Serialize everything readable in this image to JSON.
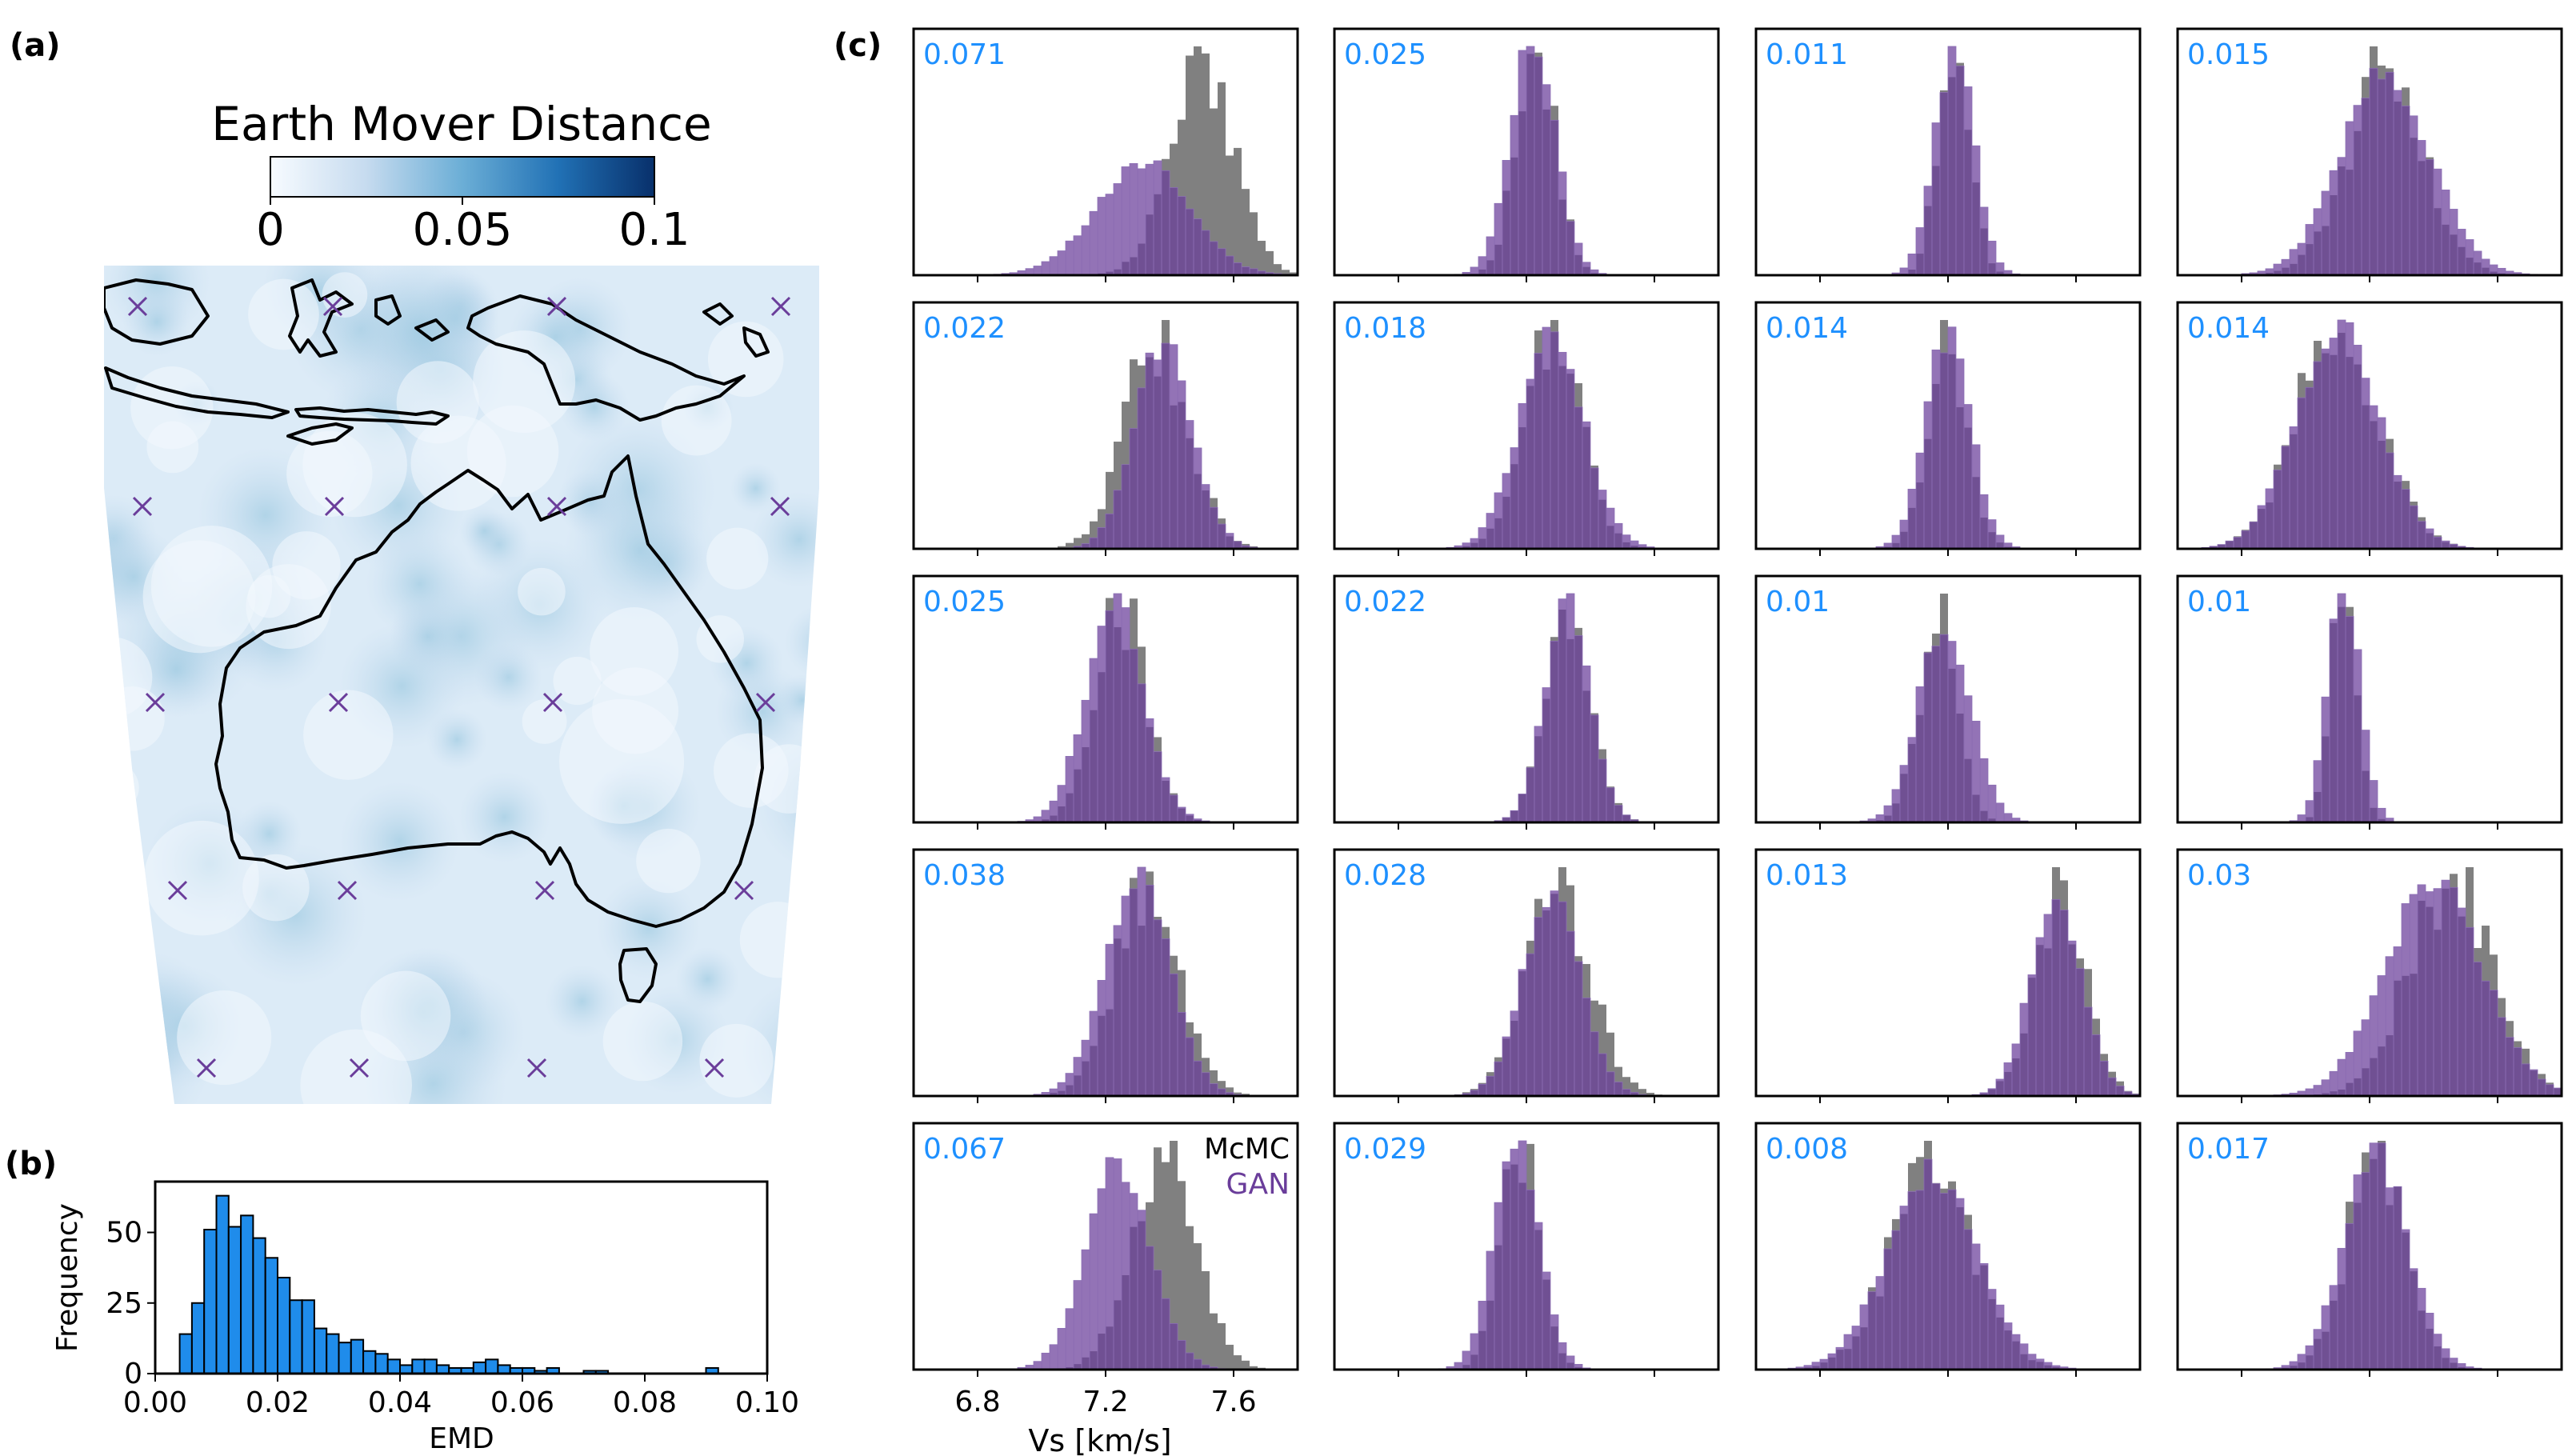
{
  "panel_labels": {
    "a": "(a)",
    "b": "(b)",
    "c": "(c)"
  },
  "colors": {
    "gan": "#6a3d9a",
    "mcmc": "#808080",
    "emd_value_text": "#1e90ff",
    "hist_bar": "#1f8ceb",
    "map_low": "#f3f8fd",
    "map_high": "#08306b",
    "station_marker": "#6a3d9a"
  },
  "map_panel": {
    "colorbar_title": "Earth Mover Distance",
    "colorbar_ticks": [
      "0",
      "0.05",
      "0.1"
    ],
    "colormap": "Blues",
    "range": [
      0,
      0.1
    ],
    "coastline": "Australia, Indonesia and New Guinea",
    "station_marker_icon": "x-marker",
    "station_grid": "4 columns x 5 rows"
  },
  "emd_hist": {
    "xlabel": "EMD",
    "ylabel": "Frequency",
    "xticks": [
      "0.00",
      "0.02",
      "0.04",
      "0.06",
      "0.08",
      "0.10"
    ],
    "yticks": [
      "0",
      "25",
      "50"
    ]
  },
  "vs_grid": {
    "xlabel": "Vs [km/s]",
    "xticks": [
      "6.8",
      "7.2",
      "7.6"
    ],
    "legend": {
      "mcmc": "McMC",
      "gan": "GAN"
    },
    "emd_values": [
      [
        "0.071",
        "0.025",
        "0.011",
        "0.015"
      ],
      [
        "0.022",
        "0.018",
        "0.014",
        "0.014"
      ],
      [
        "0.025",
        "0.022",
        "0.01",
        "0.01"
      ],
      [
        "0.038",
        "0.028",
        "0.013",
        "0.03"
      ],
      [
        "0.067",
        "0.029",
        "0.008",
        "0.017"
      ]
    ]
  },
  "chart_data": [
    {
      "type": "heatmap",
      "colorbar_title": "Earth Mover Distance",
      "colorbar_range": [
        0,
        0.1
      ],
      "colorbar_ticks": [
        0,
        0.05,
        0.1
      ],
      "overlay": "station locations (x markers) on a 4 x 5 grid"
    },
    {
      "type": "bar",
      "xlabel": "EMD",
      "ylabel": "Frequency",
      "xlim": [
        0,
        0.1
      ],
      "ylim": [
        0,
        68
      ],
      "bin_width": 0.002,
      "bin_start": 0.004,
      "values": [
        14,
        25,
        51,
        63,
        52,
        56,
        48,
        41,
        34,
        26,
        26,
        16,
        14,
        11,
        12,
        8,
        7,
        5,
        3,
        5,
        5,
        3,
        2,
        2,
        4,
        5,
        3,
        2,
        2,
        1,
        2,
        0,
        0,
        1,
        1,
        0,
        0,
        0,
        0,
        0,
        0,
        0,
        0,
        2,
        0,
        0,
        0,
        0
      ]
    },
    {
      "type": "histogram-grid",
      "rows": 5,
      "cols": 4,
      "xlabel": "Vs [km/s]",
      "xlim": [
        6.6,
        7.8
      ],
      "xticks": [
        6.8,
        7.2,
        7.6
      ],
      "legend": [
        "McMC",
        "GAN"
      ],
      "panels": [
        {
          "emd": 0.071,
          "mcmc": {
            "mean": 7.5,
            "sd": 0.1,
            "peak": 7.56
          },
          "gan": {
            "mean": 7.38,
            "sd": 0.16,
            "skew": -0.6
          }
        },
        {
          "emd": 0.025,
          "mcmc": {
            "mean": 7.23,
            "sd": 0.06
          },
          "gan": {
            "mean": 7.22,
            "sd": 0.07
          }
        },
        {
          "emd": 0.011,
          "mcmc": {
            "mean": 7.22,
            "sd": 0.05
          },
          "gan": {
            "mean": 7.22,
            "sd": 0.06
          }
        },
        {
          "emd": 0.015,
          "mcmc": {
            "mean": 7.25,
            "sd": 0.12
          },
          "gan": {
            "mean": 7.25,
            "sd": 0.14
          }
        },
        {
          "emd": 0.022,
          "mcmc": {
            "mean": 7.36,
            "sd": 0.1
          },
          "gan": {
            "mean": 7.38,
            "sd": 0.09
          }
        },
        {
          "emd": 0.018,
          "mcmc": {
            "mean": 7.28,
            "sd": 0.09
          },
          "gan": {
            "mean": 7.28,
            "sd": 0.1
          }
        },
        {
          "emd": 0.014,
          "mcmc": {
            "mean": 7.2,
            "sd": 0.06
          },
          "gan": {
            "mean": 7.2,
            "sd": 0.07
          }
        },
        {
          "emd": 0.014,
          "mcmc": {
            "mean": 7.1,
            "sd": 0.13
          },
          "gan": {
            "mean": 7.1,
            "sd": 0.13
          }
        },
        {
          "emd": 0.025,
          "mcmc": {
            "mean": 7.25,
            "sd": 0.08
          },
          "gan": {
            "mean": 7.23,
            "sd": 0.09
          }
        },
        {
          "emd": 0.022,
          "mcmc": {
            "mean": 7.33,
            "sd": 0.07
          },
          "gan": {
            "mean": 7.33,
            "sd": 0.07
          }
        },
        {
          "emd": 0.01,
          "mcmc": {
            "mean": 7.17,
            "sd": 0.06
          },
          "gan": {
            "mean": 7.19,
            "sd": 0.08
          }
        },
        {
          "emd": 0.01,
          "mcmc": {
            "mean": 7.12,
            "sd": 0.04
          },
          "gan": {
            "mean": 7.12,
            "sd": 0.05
          }
        },
        {
          "emd": 0.038,
          "mcmc": {
            "mean": 7.33,
            "sd": 0.1
          },
          "gan": {
            "mean": 7.3,
            "sd": 0.1
          }
        },
        {
          "emd": 0.028,
          "mcmc": {
            "mean": 7.3,
            "sd": 0.1
          },
          "gan": {
            "mean": 7.28,
            "sd": 0.09
          }
        },
        {
          "emd": 0.013,
          "mcmc": {
            "mean": 7.55,
            "sd": 0.08
          },
          "gan": {
            "mean": 7.54,
            "sd": 0.08
          }
        },
        {
          "emd": 0.03,
          "mcmc": {
            "mean": 7.45,
            "sd": 0.13
          },
          "gan": {
            "mean": 7.4,
            "sd": 0.15
          }
        },
        {
          "emd": 0.067,
          "mcmc": {
            "mean": 7.38,
            "sd": 0.1
          },
          "gan": {
            "mean": 7.24,
            "sd": 0.1
          }
        },
        {
          "emd": 0.029,
          "mcmc": {
            "mean": 7.18,
            "sd": 0.06
          },
          "gan": {
            "mean": 7.17,
            "sd": 0.07
          }
        },
        {
          "emd": 0.008,
          "mcmc": {
            "mean": 7.15,
            "sd": 0.13
          },
          "gan": {
            "mean": 7.15,
            "sd": 0.14
          }
        },
        {
          "emd": 0.017,
          "mcmc": {
            "mean": 7.22,
            "sd": 0.09
          },
          "gan": {
            "mean": 7.22,
            "sd": 0.1
          }
        }
      ]
    }
  ]
}
